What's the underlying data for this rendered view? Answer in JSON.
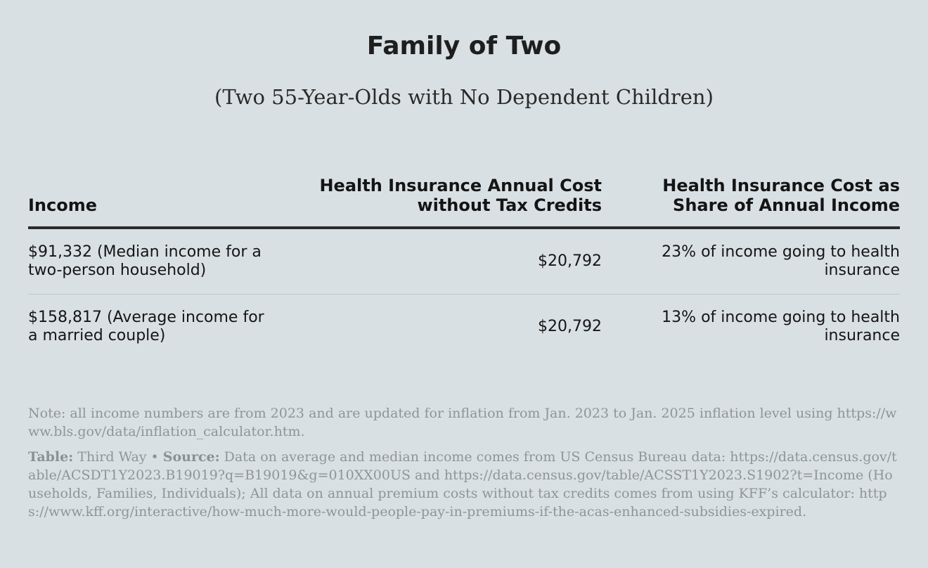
{
  "chart_data": {
    "type": "table",
    "title": "Family of Two",
    "subtitle": "(Two 55-Year-Olds with No Dependent Children)",
    "columns": [
      "Income",
      "Health Insurance Annual Cost without Tax Credits",
      "Health Insurance Cost as Share of Annual Income"
    ],
    "rows": [
      {
        "income": "$91,332 (Median income for a two-person household)",
        "cost": "$20,792",
        "share": "23% of income going to health insurance"
      },
      {
        "income": "$158,817 (Average income for a married couple)",
        "cost": "$20,792",
        "share": "13% of income going to health insurance"
      }
    ]
  },
  "footer": {
    "note": "Note: all income numbers are from 2023 and are updated for inflation from Jan. 2023 to Jan. 2025 inflation level using https://www.bls.gov/data/inflation_calculator.htm.",
    "table_label": "Table:",
    "table_value": "Third Way",
    "separator": "•",
    "source_label": "Source:",
    "source_value": "Data on average and median income comes from US Census Bureau data: https://data.census.gov/table/ACSDT1Y2023.B19019?q=B19019&g=010XX00US and https://data.census.gov/table/ACSST1Y2023.S1902?t=Income (Households, Families, Individuals); All data on annual premium costs without tax credits comes from using KFF’s calculator: https://www.kff.org/interactive/how-much-more-would-people-pay-in-premiums-if-the-acas-enhanced-subsidies-expired."
  }
}
